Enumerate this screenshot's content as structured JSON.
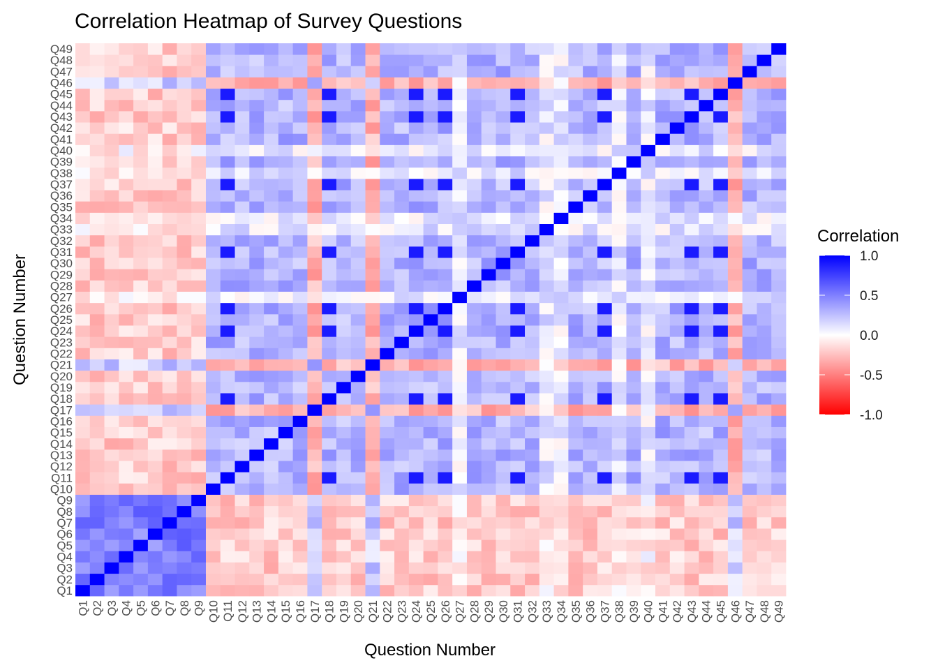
{
  "chart_data": {
    "type": "heatmap",
    "title": "Correlation Heatmap of Survey Questions",
    "xlabel": "Question Number",
    "ylabel": "Question Number",
    "x": [
      "Q1",
      "Q2",
      "Q3",
      "Q4",
      "Q5",
      "Q6",
      "Q7",
      "Q8",
      "Q9",
      "Q10",
      "Q11",
      "Q12",
      "Q13",
      "Q14",
      "Q15",
      "Q16",
      "Q17",
      "Q18",
      "Q19",
      "Q20",
      "Q21",
      "Q22",
      "Q23",
      "Q24",
      "Q25",
      "Q26",
      "Q27",
      "Q28",
      "Q29",
      "Q30",
      "Q31",
      "Q32",
      "Q33",
      "Q34",
      "Q35",
      "Q36",
      "Q37",
      "Q38",
      "Q39",
      "Q40",
      "Q41",
      "Q42",
      "Q43",
      "Q44",
      "Q45",
      "Q46",
      "Q47",
      "Q48",
      "Q49"
    ],
    "y": [
      "Q1",
      "Q2",
      "Q3",
      "Q4",
      "Q5",
      "Q6",
      "Q7",
      "Q8",
      "Q9",
      "Q10",
      "Q11",
      "Q12",
      "Q13",
      "Q14",
      "Q15",
      "Q16",
      "Q17",
      "Q18",
      "Q19",
      "Q20",
      "Q21",
      "Q22",
      "Q23",
      "Q24",
      "Q25",
      "Q26",
      "Q27",
      "Q28",
      "Q29",
      "Q30",
      "Q31",
      "Q32",
      "Q33",
      "Q34",
      "Q35",
      "Q36",
      "Q37",
      "Q38",
      "Q39",
      "Q40",
      "Q41",
      "Q42",
      "Q43",
      "Q44",
      "Q45",
      "Q46",
      "Q47",
      "Q48",
      "Q49"
    ],
    "value_range": [
      -1,
      1
    ],
    "diagonal_value": 1.0,
    "question_groups": [
      {
        "questions": [
          "Q1",
          "Q2",
          "Q3",
          "Q4",
          "Q5",
          "Q6",
          "Q7",
          "Q8",
          "Q9"
        ],
        "within_group_correlation": 0.5
      },
      {
        "questions": [
          "Q10",
          "Q11",
          "Q12",
          "Q13",
          "Q14",
          "Q15",
          "Q16",
          "Q17",
          "Q18",
          "Q19",
          "Q20",
          "Q21",
          "Q22",
          "Q23",
          "Q24",
          "Q25",
          "Q26",
          "Q27",
          "Q28",
          "Q29",
          "Q30",
          "Q31",
          "Q32",
          "Q33",
          "Q34",
          "Q35",
          "Q36",
          "Q37",
          "Q38",
          "Q39",
          "Q40",
          "Q41",
          "Q42",
          "Q43",
          "Q44",
          "Q45",
          "Q46",
          "Q47",
          "Q48",
          "Q49"
        ],
        "within_group_correlation": 0.3
      }
    ],
    "between_group_correlation": -0.2,
    "approx_strong_pairs": [
      [
        "Q11",
        "Q18",
        0.9
      ],
      [
        "Q11",
        "Q24",
        0.9
      ],
      [
        "Q11",
        "Q26",
        0.9
      ],
      [
        "Q11",
        "Q31",
        0.9
      ],
      [
        "Q11",
        "Q37",
        0.9
      ],
      [
        "Q11",
        "Q43",
        0.9
      ],
      [
        "Q11",
        "Q45",
        0.9
      ],
      [
        "Q18",
        "Q24",
        0.9
      ],
      [
        "Q18",
        "Q26",
        0.9
      ],
      [
        "Q18",
        "Q31",
        0.9
      ],
      [
        "Q18",
        "Q37",
        0.9
      ],
      [
        "Q18",
        "Q43",
        0.9
      ],
      [
        "Q18",
        "Q45",
        0.9
      ],
      [
        "Q24",
        "Q26",
        0.9
      ],
      [
        "Q24",
        "Q31",
        0.9
      ],
      [
        "Q24",
        "Q37",
        0.9
      ],
      [
        "Q24",
        "Q43",
        0.9
      ],
      [
        "Q24",
        "Q45",
        0.9
      ],
      [
        "Q26",
        "Q31",
        0.9
      ],
      [
        "Q26",
        "Q37",
        0.9
      ],
      [
        "Q26",
        "Q43",
        0.9
      ],
      [
        "Q26",
        "Q45",
        0.9
      ],
      [
        "Q31",
        "Q37",
        0.9
      ],
      [
        "Q31",
        "Q43",
        0.9
      ],
      [
        "Q31",
        "Q45",
        0.9
      ],
      [
        "Q37",
        "Q43",
        0.9
      ],
      [
        "Q37",
        "Q45",
        0.9
      ],
      [
        "Q43",
        "Q45",
        0.9
      ]
    ],
    "near_zero_questions": [
      "Q27",
      "Q33",
      "Q34",
      "Q38",
      "Q40"
    ],
    "inverse_pattern_questions": [
      "Q17",
      "Q21",
      "Q46"
    ],
    "legend": {
      "title": "Correlation",
      "ticks": [
        "1.0",
        "0.5",
        "0.0",
        "-0.5",
        "-1.0"
      ],
      "colors": {
        "low": "#ff0000",
        "mid": "#ffffff",
        "high": "#0000ff"
      },
      "placement": "right"
    }
  }
}
